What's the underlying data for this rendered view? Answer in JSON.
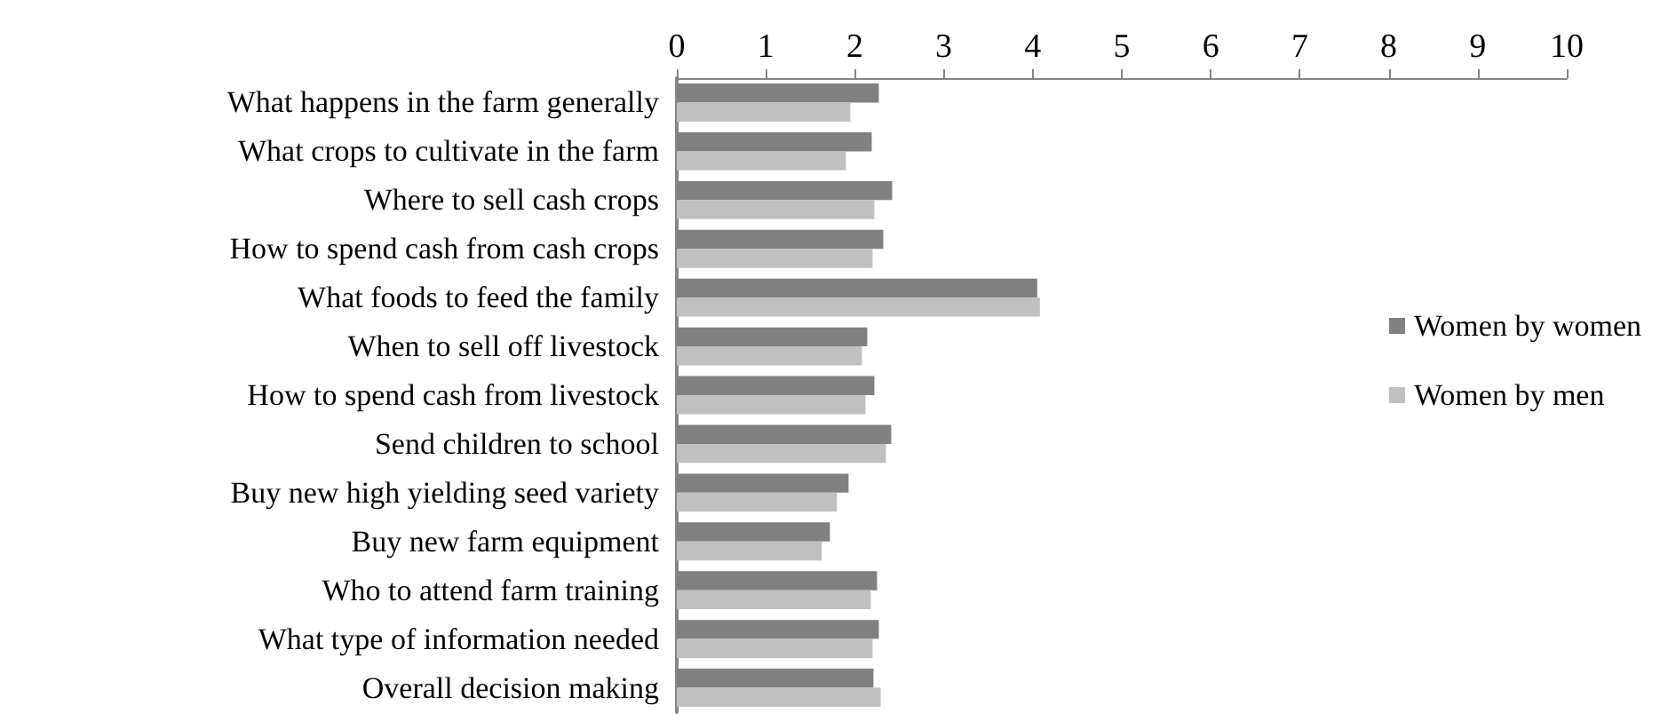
{
  "chart_data": {
    "type": "bar",
    "orientation": "horizontal",
    "categories": [
      "What happens in the farm generally",
      "What crops to cultivate in the farm",
      "Where to sell cash crops",
      "How to spend cash from cash crops",
      "What foods to feed the family",
      "When to sell off livestock",
      "How to spend cash from livestock",
      "Send children to school",
      "Buy new high yielding seed variety",
      "Buy new farm equipment",
      "Who to attend farm training",
      "What type of information needed",
      "Overall decision making"
    ],
    "series": [
      {
        "name": "Women by women",
        "color": "#808080",
        "values": [
          2.27,
          2.19,
          2.42,
          2.32,
          4.05,
          2.14,
          2.22,
          2.41,
          1.93,
          1.72,
          2.25,
          2.27,
          2.21
        ]
      },
      {
        "name": "Women by men",
        "color": "#c0c0c0",
        "values": [
          1.95,
          1.9,
          2.22,
          2.2,
          4.08,
          2.08,
          2.12,
          2.35,
          1.8,
          1.63,
          2.18,
          2.2,
          2.29
        ]
      }
    ],
    "xlim": [
      0,
      10
    ],
    "xticks": [
      0,
      1,
      2,
      3,
      4,
      5,
      6,
      7,
      8,
      9,
      10
    ],
    "grid": false,
    "legend": "right"
  }
}
